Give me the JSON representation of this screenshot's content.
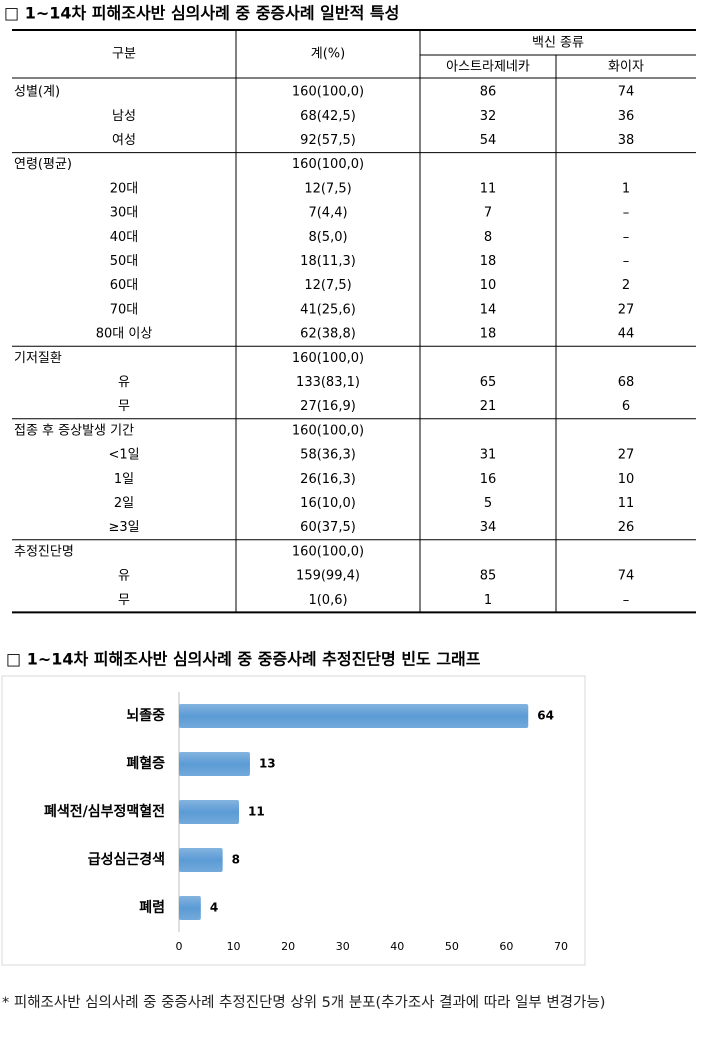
{
  "section1_title": "□ 1~14차 피해조사반 심의사례 중 중증사례 일반적 특성",
  "table": {
    "headers": {
      "category": "구분",
      "total": "계(%)",
      "vaccine": "백신 종류",
      "az": "아스트라제네카",
      "pfizer": "화이자"
    },
    "groups": [
      {
        "rows": [
          [
            "성별(계)",
            "160(100,0)",
            "86",
            "74"
          ],
          [
            "남성",
            "68(42,5)",
            "32",
            "36"
          ],
          [
            "여성",
            "92(57,5)",
            "54",
            "38"
          ]
        ]
      },
      {
        "rows": [
          [
            "연령(평균)",
            "160(100,0)",
            null,
            null
          ],
          [
            "20대",
            "12(7,5)",
            "11",
            "1"
          ],
          [
            "30대",
            "7(4,4)",
            "7",
            "–"
          ],
          [
            "40대",
            "8(5,0)",
            "8",
            "–"
          ],
          [
            "50대",
            "18(11,3)",
            "18",
            "–"
          ],
          [
            "60대",
            "12(7,5)",
            "10",
            "2"
          ],
          [
            "70대",
            "41(25,6)",
            "14",
            "27"
          ],
          [
            "80대 이상",
            "62(38,8)",
            "18",
            "44"
          ]
        ]
      },
      {
        "rows": [
          [
            "기저질환",
            "160(100,0)",
            null,
            null
          ],
          [
            "유",
            "133(83,1)",
            "65",
            "68"
          ],
          [
            "무",
            "27(16,9)",
            "21",
            "6"
          ]
        ]
      },
      {
        "rows": [
          [
            "접종 후 증상발생 기간",
            "160(100,0)",
            null,
            null
          ],
          [
            "<1일",
            "58(36,3)",
            "31",
            "27"
          ],
          [
            "1일",
            "26(16,3)",
            "16",
            "10"
          ],
          [
            "2일",
            "16(10,0)",
            "5",
            "11"
          ],
          [
            "≥3일",
            "60(37,5)",
            "34",
            "26"
          ]
        ]
      },
      {
        "rows": [
          [
            "추정진단명",
            "160(100,0)",
            null,
            null
          ],
          [
            "유",
            "159(99,4)",
            "85",
            "74"
          ],
          [
            "무",
            "1(0,6)",
            "1",
            "–"
          ]
        ]
      }
    ]
  },
  "section2_title": "□ 1~14차 피해조사반 심의사례 중 중증사례 추정진단명 빈도 그래프",
  "chart_data": {
    "type": "bar",
    "orientation": "horizontal",
    "categories": [
      "뇌졸중",
      "폐혈증",
      "폐색전/심부정맥혈전",
      "급성심근경색",
      "폐렴"
    ],
    "values": [
      64,
      13,
      11,
      8,
      4
    ],
    "color": "#5b9bd5",
    "xlim": [
      0,
      70
    ],
    "xticks": [
      0,
      10,
      20,
      30,
      40,
      50,
      60,
      70
    ]
  },
  "footnote": "* 피해조사반 심의사례 중 중증사례 추정진단명 상위 5개 분포(추가조사 결과에 따라 일부 변경가능)"
}
